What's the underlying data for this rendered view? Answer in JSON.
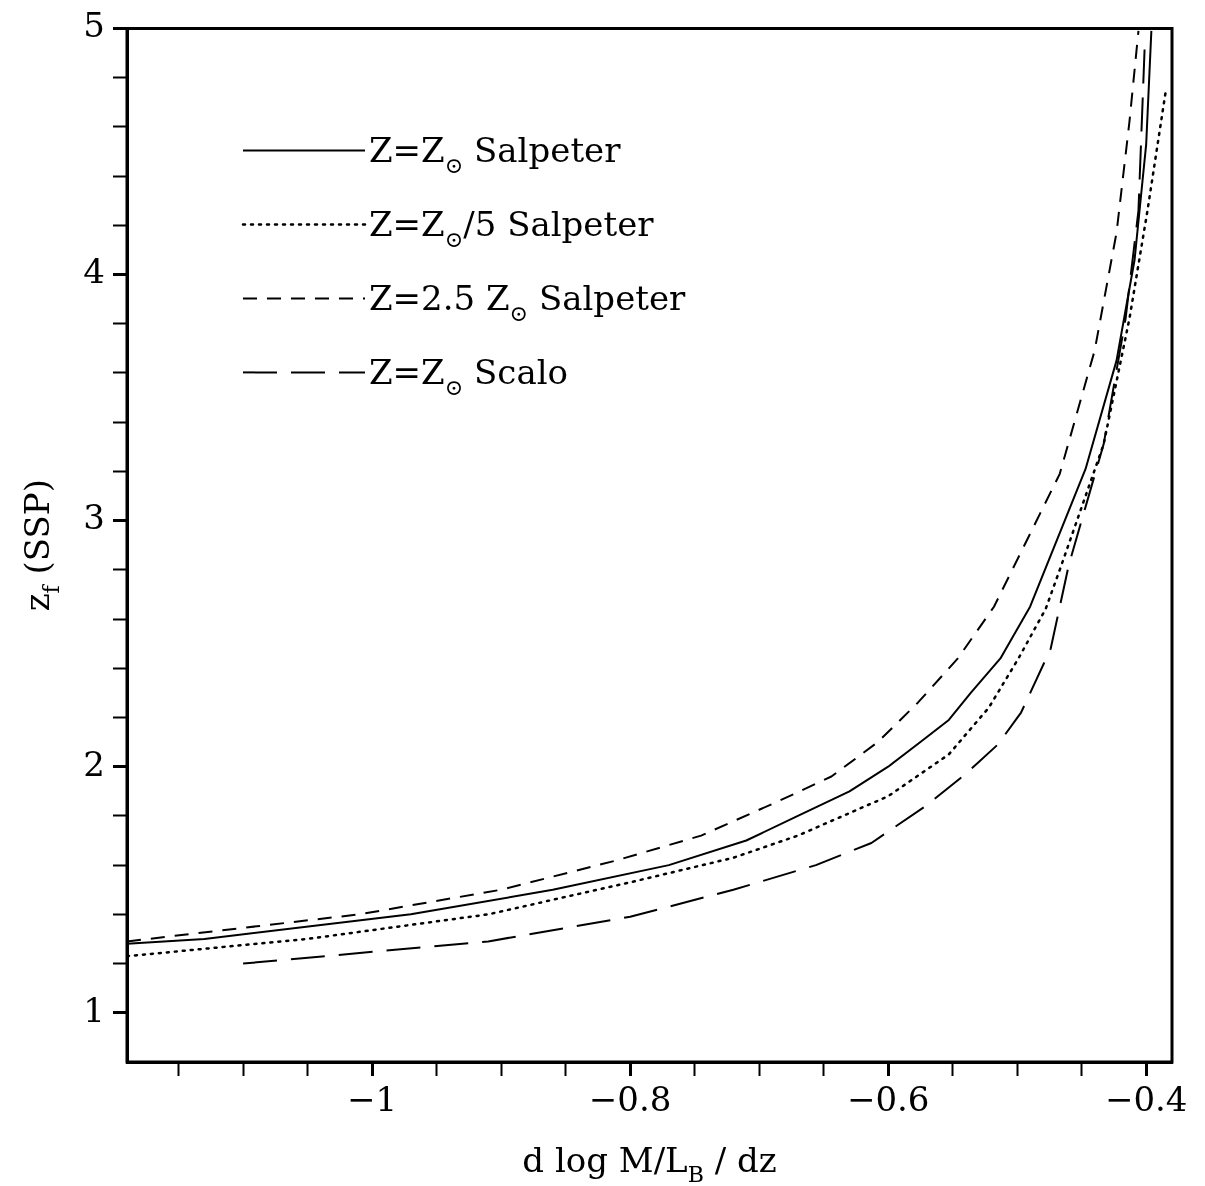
{
  "chart_data": {
    "type": "line",
    "xlabel": "d log M/L$_{B}$ / dz",
    "ylabel": "z$_{f}$ (SSP)",
    "xlim": [
      -1.19,
      -0.38
    ],
    "ylim": [
      0.8,
      5
    ],
    "xticks": [
      {
        "value": -1.15,
        "label": null
      },
      {
        "value": -1.1,
        "label": null
      },
      {
        "value": -1.05,
        "label": null
      },
      {
        "value": -1,
        "label": "−1"
      },
      {
        "value": -0.95,
        "label": null
      },
      {
        "value": -0.9,
        "label": null
      },
      {
        "value": -0.85,
        "label": null
      },
      {
        "value": -0.8,
        "label": "−0.8"
      },
      {
        "value": -0.75,
        "label": null
      },
      {
        "value": -0.7,
        "label": null
      },
      {
        "value": -0.65,
        "label": null
      },
      {
        "value": -0.6,
        "label": "−0.6"
      },
      {
        "value": -0.55,
        "label": null
      },
      {
        "value": -0.5,
        "label": null
      },
      {
        "value": -0.45,
        "label": null
      },
      {
        "value": -0.4,
        "label": "−0.4"
      }
    ],
    "yticks": [
      {
        "value": 1,
        "label": "1"
      },
      {
        "value": 1.2,
        "label": null
      },
      {
        "value": 1.4,
        "label": null
      },
      {
        "value": 1.6,
        "label": null
      },
      {
        "value": 1.8,
        "label": null
      },
      {
        "value": 2,
        "label": "2"
      },
      {
        "value": 2.2,
        "label": null
      },
      {
        "value": 2.4,
        "label": null
      },
      {
        "value": 2.6,
        "label": null
      },
      {
        "value": 2.8,
        "label": null
      },
      {
        "value": 3,
        "label": "3"
      },
      {
        "value": 3.2,
        "label": null
      },
      {
        "value": 3.4,
        "label": null
      },
      {
        "value": 3.6,
        "label": null
      },
      {
        "value": 3.8,
        "label": null
      },
      {
        "value": 4,
        "label": "4"
      },
      {
        "value": 4.2,
        "label": null
      },
      {
        "value": 4.4,
        "label": null
      },
      {
        "value": 4.6,
        "label": null
      },
      {
        "value": 4.8,
        "label": null
      },
      {
        "value": 5,
        "label": "5"
      }
    ],
    "grid": false,
    "legend": "top left",
    "marker": "none",
    "series": [
      {
        "name": "Z=Z$_{⊙}$ Salpeter",
        "color": "#000000",
        "line_style": "solid",
        "x": [
          -1.19,
          -1.13,
          -0.97,
          -0.86,
          -0.77,
          -0.71,
          -0.67,
          -0.63,
          -0.6,
          -0.575,
          -0.553,
          -0.536,
          -0.513,
          -0.49,
          -0.447,
          -0.423,
          -0.409,
          -0.4,
          -0.396
        ],
        "values": [
          1.28,
          1.3,
          1.4,
          1.5,
          1.6,
          1.7,
          1.8,
          1.9,
          2.0,
          2.1,
          2.19,
          2.3,
          2.44,
          2.65,
          3.21,
          3.65,
          4.06,
          4.53,
          4.99
        ]
      },
      {
        "name": "Z=Z$_{⊙}$/5 Salpeter",
        "color": "#000000",
        "line_style": "dotted",
        "x": [
          -1.19,
          -1.05,
          -0.91,
          -0.8,
          -0.72,
          -0.67,
          -0.6,
          -0.553,
          -0.522,
          -0.499,
          -0.478,
          -0.467,
          -0.433,
          -0.413,
          -0.399,
          -0.385
        ],
        "values": [
          1.23,
          1.3,
          1.4,
          1.53,
          1.63,
          1.72,
          1.88,
          2.05,
          2.24,
          2.44,
          2.64,
          2.8,
          3.31,
          3.82,
          4.26,
          4.74
        ]
      },
      {
        "name": "Z=2.5 Z$_{⊙}$ Salpeter",
        "color": "#000000",
        "line_style": "dashed",
        "x": [
          -1.19,
          -1.01,
          -0.9,
          -0.81,
          -0.745,
          -0.685,
          -0.644,
          -0.608,
          -0.577,
          -0.546,
          -0.518,
          -0.467,
          -0.44,
          -0.423,
          -0.413,
          -0.406
        ],
        "values": [
          1.29,
          1.4,
          1.5,
          1.62,
          1.72,
          1.86,
          1.96,
          2.1,
          2.26,
          2.44,
          2.65,
          3.19,
          3.69,
          4.17,
          4.62,
          4.99
        ]
      },
      {
        "name": "Z=Z$_{⊙}$ Scalo",
        "color": "#000000",
        "line_style": "dashed",
        "x": [
          -1.1,
          -0.91,
          -0.8,
          -0.72,
          -0.656,
          -0.613,
          -0.571,
          -0.54,
          -0.515,
          -0.497,
          -0.489,
          -0.474,
          -0.46,
          -0.433,
          -0.416,
          -0.406,
          -0.401
        ],
        "values": [
          1.2,
          1.29,
          1.39,
          1.5,
          1.6,
          1.69,
          1.84,
          1.97,
          2.09,
          2.22,
          2.31,
          2.48,
          2.82,
          3.31,
          3.82,
          4.26,
          4.95
        ]
      }
    ]
  }
}
